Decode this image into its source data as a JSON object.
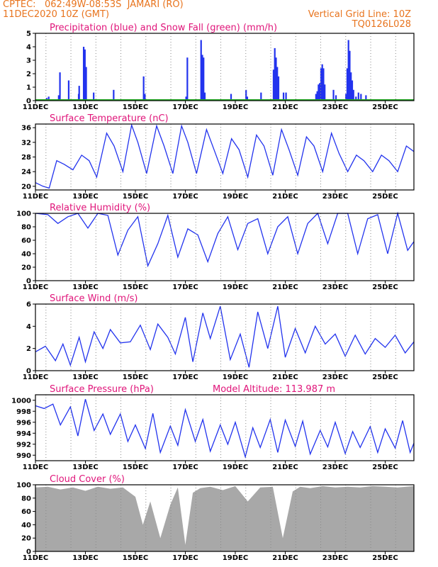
{
  "header": {
    "source": "CPTEC:",
    "coords": "062:49W-08:53S",
    "location": "JAMARI (RO)",
    "run": "11DEC2020 10Z (GMT)",
    "grid_note": "Vertical Grid Line: 10Z",
    "model": "TQ0126L028"
  },
  "colors": {
    "precip": "#2233ee",
    "snow": "#22aa22",
    "line": "#2233ee",
    "cloud": "#a8a8a8",
    "title": "#e0157a",
    "header": "#e8741e"
  },
  "x_ticks": [
    "11DEC",
    "13DEC",
    "15DEC",
    "17DEC",
    "19DEC",
    "21DEC",
    "23DEC",
    "25DEC"
  ],
  "chart_data": [
    {
      "type": "bar",
      "title": "Precipitation (blue) and Snow Fall (green) (mm/h)",
      "ylim": [
        0,
        5
      ],
      "yticks": [
        "0",
        "1",
        "2",
        "3",
        "4",
        "5"
      ],
      "x": [
        0.42,
        0.5,
        0.9,
        0.95,
        1.3,
        1.7,
        1.72,
        1.9,
        1.95,
        2.0,
        2.3,
        3.1,
        4.3,
        4.35,
        6.0,
        6.05,
        6.6,
        6.65,
        6.7,
        6.75,
        7.8,
        8.4,
        8.45,
        9.0,
        9.5,
        9.55,
        9.6,
        9.65,
        9.7,
        9.9,
        10.0,
        11.2,
        11.25,
        11.3,
        11.35,
        11.4,
        11.45,
        11.5,
        11.55,
        11.9,
        12.0,
        12.4,
        12.45,
        12.5,
        12.55,
        12.6,
        12.65,
        12.7,
        12.8,
        12.9,
        13.0,
        13.2
      ],
      "values": [
        0.2,
        0.3,
        0.4,
        2.1,
        1.5,
        0.5,
        1.1,
        4.0,
        3.8,
        2.5,
        0.6,
        0.8,
        1.8,
        0.5,
        0.3,
        3.2,
        4.5,
        3.4,
        3.2,
        0.6,
        0.5,
        0.8,
        0.3,
        0.6,
        2.3,
        3.9,
        3.2,
        2.5,
        1.8,
        0.6,
        0.6,
        0.5,
        0.7,
        1.2,
        1.3,
        2.4,
        2.7,
        2.4,
        1.2,
        0.8,
        0.4,
        0.5,
        2.4,
        4.5,
        3.7,
        2.1,
        1.5,
        0.8,
        0.3,
        0.6,
        0.5,
        0.4
      ],
      "snow": 0
    },
    {
      "type": "line",
      "title": "Surface Temperature (nC)",
      "ylim": [
        19,
        37
      ],
      "yticks": [
        "20",
        "24",
        "28",
        "32",
        "36"
      ],
      "x": [
        0,
        0.3,
        0.55,
        0.85,
        1.15,
        1.5,
        1.85,
        2.15,
        2.45,
        2.85,
        3.15,
        3.5,
        3.85,
        4.1,
        4.45,
        4.85,
        5.15,
        5.5,
        5.85,
        6.1,
        6.45,
        6.85,
        7.15,
        7.5,
        7.85,
        8.15,
        8.5,
        8.85,
        9.15,
        9.5,
        9.85,
        10.15,
        10.5,
        10.85,
        11.15,
        11.5,
        11.85,
        12.15,
        12.5,
        12.85,
        13.15,
        13.5,
        13.85,
        14.15,
        14.5,
        14.85,
        15.15
      ],
      "values": [
        21,
        20,
        19.5,
        27,
        26,
        24.5,
        28.5,
        27,
        22.5,
        34.5,
        31,
        24,
        36.7,
        32,
        23.5,
        36.5,
        31,
        23.5,
        36.5,
        32,
        23.5,
        35.5,
        30,
        23.5,
        33,
        30,
        22.5,
        34,
        31,
        23,
        35.5,
        30,
        23,
        33.5,
        31,
        24,
        34.5,
        29,
        24,
        28.5,
        27,
        24,
        28.5,
        27,
        24,
        31,
        29.5
      ]
    },
    {
      "type": "line",
      "title": "Relative Humidity (%)",
      "ylim": [
        0,
        100
      ],
      "yticks": [
        "0",
        "20",
        "40",
        "60",
        "80",
        "100"
      ],
      "x": [
        0,
        0.5,
        0.9,
        1.3,
        1.7,
        2.1,
        2.5,
        2.9,
        3.3,
        3.7,
        4.1,
        4.5,
        4.9,
        5.3,
        5.7,
        6.1,
        6.5,
        6.9,
        7.3,
        7.7,
        8.1,
        8.5,
        8.9,
        9.3,
        9.7,
        10.1,
        10.5,
        10.9,
        11.3,
        11.7,
        12.1,
        12.5,
        12.9,
        13.3,
        13.7,
        14.1,
        14.5,
        14.9,
        15.15
      ],
      "values": [
        100,
        98,
        85,
        95,
        100,
        78,
        100,
        97,
        38,
        75,
        95,
        22,
        55,
        97,
        35,
        77,
        68,
        28,
        70,
        95,
        46,
        85,
        92,
        40,
        80,
        95,
        40,
        85,
        100,
        55,
        100,
        100,
        40,
        92,
        98,
        40,
        100,
        45,
        58
      ]
    },
    {
      "type": "line",
      "title": "Surface Wind (m/s)",
      "ylim": [
        0,
        6
      ],
      "yticks": [
        "0",
        "2",
        "4",
        "6"
      ],
      "x": [
        0,
        0.4,
        0.8,
        1.1,
        1.4,
        1.75,
        2.0,
        2.35,
        2.7,
        3.0,
        3.4,
        3.8,
        4.2,
        4.6,
        4.9,
        5.3,
        5.6,
        6.0,
        6.3,
        6.7,
        7.0,
        7.4,
        7.8,
        8.2,
        8.55,
        8.9,
        9.3,
        9.7,
        10.0,
        10.4,
        10.8,
        11.2,
        11.6,
        12.0,
        12.4,
        12.8,
        13.2,
        13.6,
        14.0,
        14.4,
        14.8,
        15.15
      ],
      "values": [
        1.7,
        2.2,
        0.9,
        2.4,
        0.5,
        3.0,
        0.8,
        3.5,
        2.0,
        3.7,
        2.5,
        2.6,
        4.1,
        1.9,
        4.2,
        3.0,
        1.5,
        4.8,
        0.8,
        5.2,
        2.9,
        5.8,
        1.0,
        3.3,
        0.3,
        5.3,
        2.0,
        5.8,
        1.2,
        3.8,
        1.6,
        4.0,
        2.4,
        3.3,
        1.3,
        3.2,
        1.5,
        2.9,
        2.1,
        3.2,
        1.6,
        2.6
      ]
    },
    {
      "type": "line",
      "title": "Surface Pressure (hPa)",
      "ylim": [
        989,
        1001
      ],
      "yticks": [
        "990",
        "992",
        "994",
        "996",
        "998",
        "1000"
      ],
      "x": [
        0,
        0.35,
        0.7,
        1.0,
        1.4,
        1.7,
        2.0,
        2.35,
        2.7,
        3.0,
        3.4,
        3.7,
        4.0,
        4.4,
        4.7,
        5.0,
        5.4,
        5.7,
        6.0,
        6.4,
        6.7,
        7.0,
        7.4,
        7.7,
        8.0,
        8.4,
        8.7,
        9.0,
        9.4,
        9.7,
        10.0,
        10.4,
        10.7,
        11.0,
        11.4,
        11.7,
        12.0,
        12.4,
        12.7,
        13.0,
        13.4,
        13.7,
        14.0,
        14.4,
        14.7,
        15.0,
        15.15
      ],
      "values": [
        999,
        998.5,
        999.3,
        995.5,
        998.8,
        993.5,
        1000.2,
        994.5,
        997.5,
        993.8,
        997.5,
        992.5,
        995.5,
        991.2,
        997.6,
        990.5,
        995.3,
        991.8,
        998.3,
        992.5,
        996.5,
        990.7,
        995.5,
        992,
        996,
        989.7,
        995,
        991.4,
        996.5,
        990.5,
        996.4,
        991.6,
        996.2,
        990.2,
        994.5,
        991.5,
        996,
        990.3,
        994.3,
        991.4,
        995.2,
        990.5,
        994.8,
        991.3,
        996.3,
        990.5,
        992.2
      ]
    },
    {
      "type": "area",
      "title": "Cloud Cover (%)",
      "ylim": [
        0,
        100
      ],
      "yticks": [
        "0",
        "20",
        "40",
        "60",
        "80",
        "100"
      ],
      "x": [
        0,
        0.5,
        1.0,
        1.5,
        2.0,
        2.5,
        3.0,
        3.5,
        4.0,
        4.3,
        4.6,
        5.0,
        5.4,
        5.7,
        6.0,
        6.3,
        6.6,
        7.0,
        7.5,
        8.0,
        8.5,
        9.0,
        9.5,
        9.9,
        10.3,
        10.6,
        11.0,
        11.5,
        12.0,
        12.5,
        13.0,
        13.5,
        14.0,
        14.5,
        15.15
      ],
      "values": [
        96,
        97,
        93,
        96,
        91,
        97,
        94,
        96,
        82,
        40,
        75,
        20,
        70,
        96,
        10,
        88,
        95,
        97,
        92,
        98,
        75,
        96,
        97,
        20,
        90,
        97,
        95,
        98,
        96,
        97,
        96,
        98,
        97,
        96,
        98
      ]
    }
  ],
  "altitude_note": "Model Altitude: 113.987 m"
}
